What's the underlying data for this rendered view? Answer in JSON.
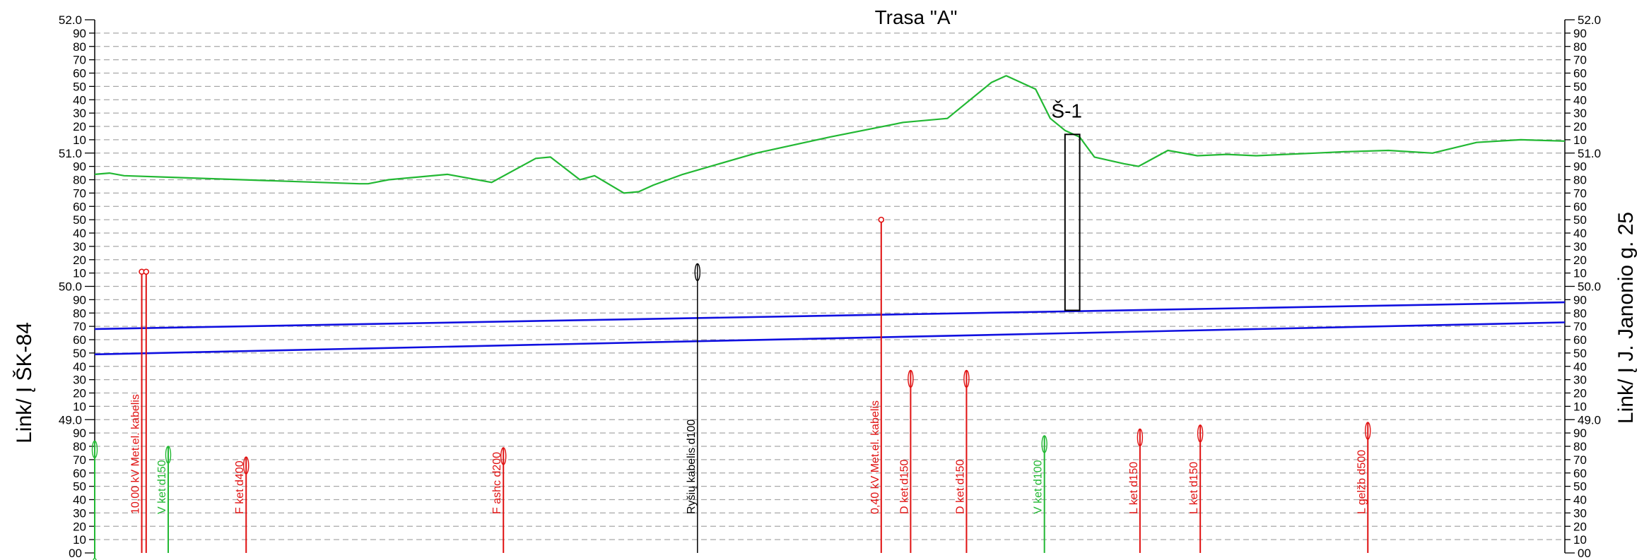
{
  "title": "Trasa \"A\"",
  "left_side_label": "Link/ Į ŠK-84",
  "right_side_label": "Link/ Į J. Janonio g. 25",
  "colors": {
    "ground": "#22b833",
    "pipe": "#1010e0",
    "electric": "#e01010",
    "water": "#22b833",
    "telecom": "#000000",
    "grid": "#a8a8a8"
  },
  "elevation_axis": {
    "min": 48.0,
    "max": 52.0,
    "major_labels": [
      "52.0",
      "51.0",
      "50.0",
      "49.0",
      "48.0"
    ],
    "minor_labels": [
      "90",
      "80",
      "70",
      "60",
      "50",
      "40",
      "30",
      "20",
      "10"
    ],
    "bottom_label": "00"
  },
  "chart_data": {
    "type": "line",
    "xlim": [
      0,
      100
    ],
    "ylim": [
      48.0,
      52.0
    ],
    "ground_profile": {
      "x": [
        0,
        1.0,
        2.0,
        10,
        18,
        18.6,
        20,
        24,
        27,
        30,
        31,
        33,
        34,
        36,
        37,
        38,
        40,
        45,
        50,
        55,
        58,
        61,
        62,
        63,
        64,
        65,
        66,
        67,
        68,
        70,
        71,
        73,
        75,
        77,
        79,
        81,
        83,
        85,
        88,
        91,
        94,
        97,
        100
      ],
      "y": [
        50.84,
        50.85,
        50.83,
        50.8,
        50.77,
        50.77,
        50.8,
        50.84,
        50.78,
        50.96,
        50.97,
        50.8,
        50.83,
        50.7,
        50.71,
        50.76,
        50.84,
        51.0,
        51.12,
        51.23,
        51.26,
        51.53,
        51.58,
        51.53,
        51.48,
        51.26,
        51.17,
        51.12,
        50.97,
        50.92,
        50.9,
        51.02,
        50.98,
        50.99,
        50.98,
        50.99,
        51.0,
        51.01,
        51.02,
        51.0,
        51.08,
        51.1,
        51.09
      ]
    },
    "pipe_top": {
      "x": [
        0,
        100
      ],
      "y": [
        49.68,
        49.88
      ]
    },
    "pipe_bottom": {
      "x": [
        0,
        100
      ],
      "y": [
        49.49,
        49.73
      ]
    },
    "well": {
      "label": "Š-1",
      "x_left": 66.0,
      "x_right": 67.0,
      "y_top": 51.14,
      "y_bottom": 49.82
    },
    "utilities": [
      {
        "label": "",
        "x": 0.0,
        "top": 48.84,
        "kind": "water"
      },
      {
        "label": "",
        "x": 0.0,
        "top": 47.96,
        "kind": "water"
      },
      {
        "label": "10,00 kV Met.el. kabelis",
        "x": 3.2,
        "top": 50.11,
        "kind": "electric-dot"
      },
      {
        "label": "",
        "x": 3.5,
        "top": 50.11,
        "kind": "electric-dot"
      },
      {
        "label": "V ket d150",
        "x": 5.0,
        "top": 48.8,
        "kind": "water"
      },
      {
        "label": "F ket d400",
        "x": 10.3,
        "top": 48.72,
        "kind": "electric"
      },
      {
        "label": "F ashc d200",
        "x": 27.8,
        "top": 48.79,
        "kind": "electric"
      },
      {
        "label": "Ryšių kabelis d100",
        "x": 41.0,
        "top": 50.17,
        "kind": "telecom"
      },
      {
        "label": "0,40 kV Met.el. kabelis",
        "x": 53.5,
        "top": 50.5,
        "kind": "electric-dot"
      },
      {
        "label": "D ket d150",
        "x": 55.5,
        "top": 49.37,
        "kind": "electric"
      },
      {
        "label": "D ket d150",
        "x": 59.3,
        "top": 49.37,
        "kind": "electric"
      },
      {
        "label": "V ket d100",
        "x": 64.6,
        "top": 48.88,
        "kind": "water"
      },
      {
        "label": "L ket d150",
        "x": 71.1,
        "top": 48.93,
        "kind": "electric"
      },
      {
        "label": "L ket d150",
        "x": 75.2,
        "top": 48.96,
        "kind": "electric"
      },
      {
        "label": "L gelžb d500",
        "x": 86.6,
        "top": 48.98,
        "kind": "electric"
      }
    ]
  }
}
